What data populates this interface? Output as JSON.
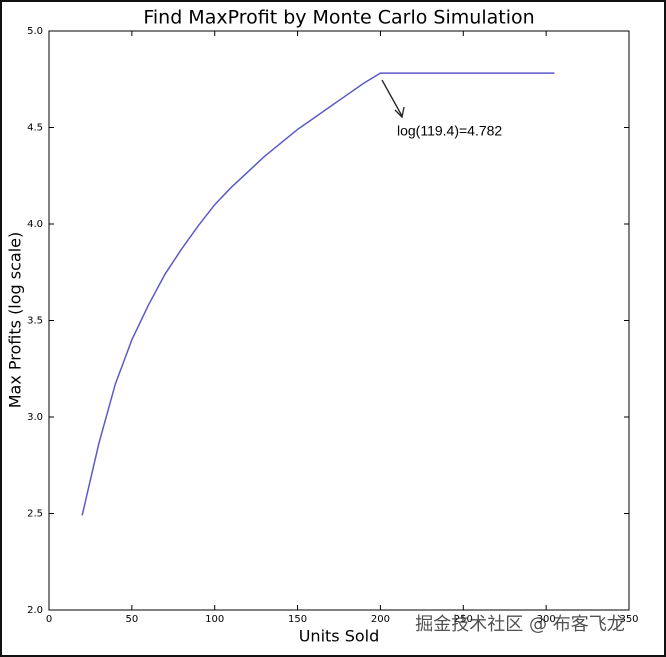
{
  "chart_data": {
    "type": "line",
    "title": "Find MaxProfit by Monte Carlo Simulation",
    "x_label": "Units Sold",
    "y_label": "Max Profits (log scale)",
    "x": [
      20,
      30,
      40,
      50,
      60,
      70,
      80,
      90,
      100,
      110,
      120,
      130,
      140,
      150,
      160,
      170,
      180,
      190,
      200,
      305
    ],
    "values": [
      2.49,
      2.86,
      3.17,
      3.4,
      3.58,
      3.74,
      3.87,
      3.99,
      4.1,
      4.19,
      4.27,
      4.35,
      4.42,
      4.49,
      4.55,
      4.61,
      4.67,
      4.73,
      4.782,
      4.782
    ],
    "color": "#5b5bc8",
    "xlim": [
      0,
      350
    ],
    "xticks": [
      0,
      50,
      100,
      150,
      200,
      250,
      300,
      350
    ],
    "ylim": [
      2.0,
      5.0
    ],
    "yticks": [
      {
        "value": 2.0,
        "label": "2.0"
      },
      {
        "value": 2.5,
        "label": "2.5"
      },
      {
        "value": 3.0,
        "label": "3.0"
      },
      {
        "value": 3.5,
        "label": "3.5"
      },
      {
        "value": 4.0,
        "label": "4.0"
      },
      {
        "value": 4.5,
        "label": "4.5"
      },
      {
        "value": 5.0,
        "label": "5.0"
      }
    ],
    "annotation": "log(119.4)=4.782"
  },
  "watermark": "掘金技术社区 @ 布客飞龙"
}
